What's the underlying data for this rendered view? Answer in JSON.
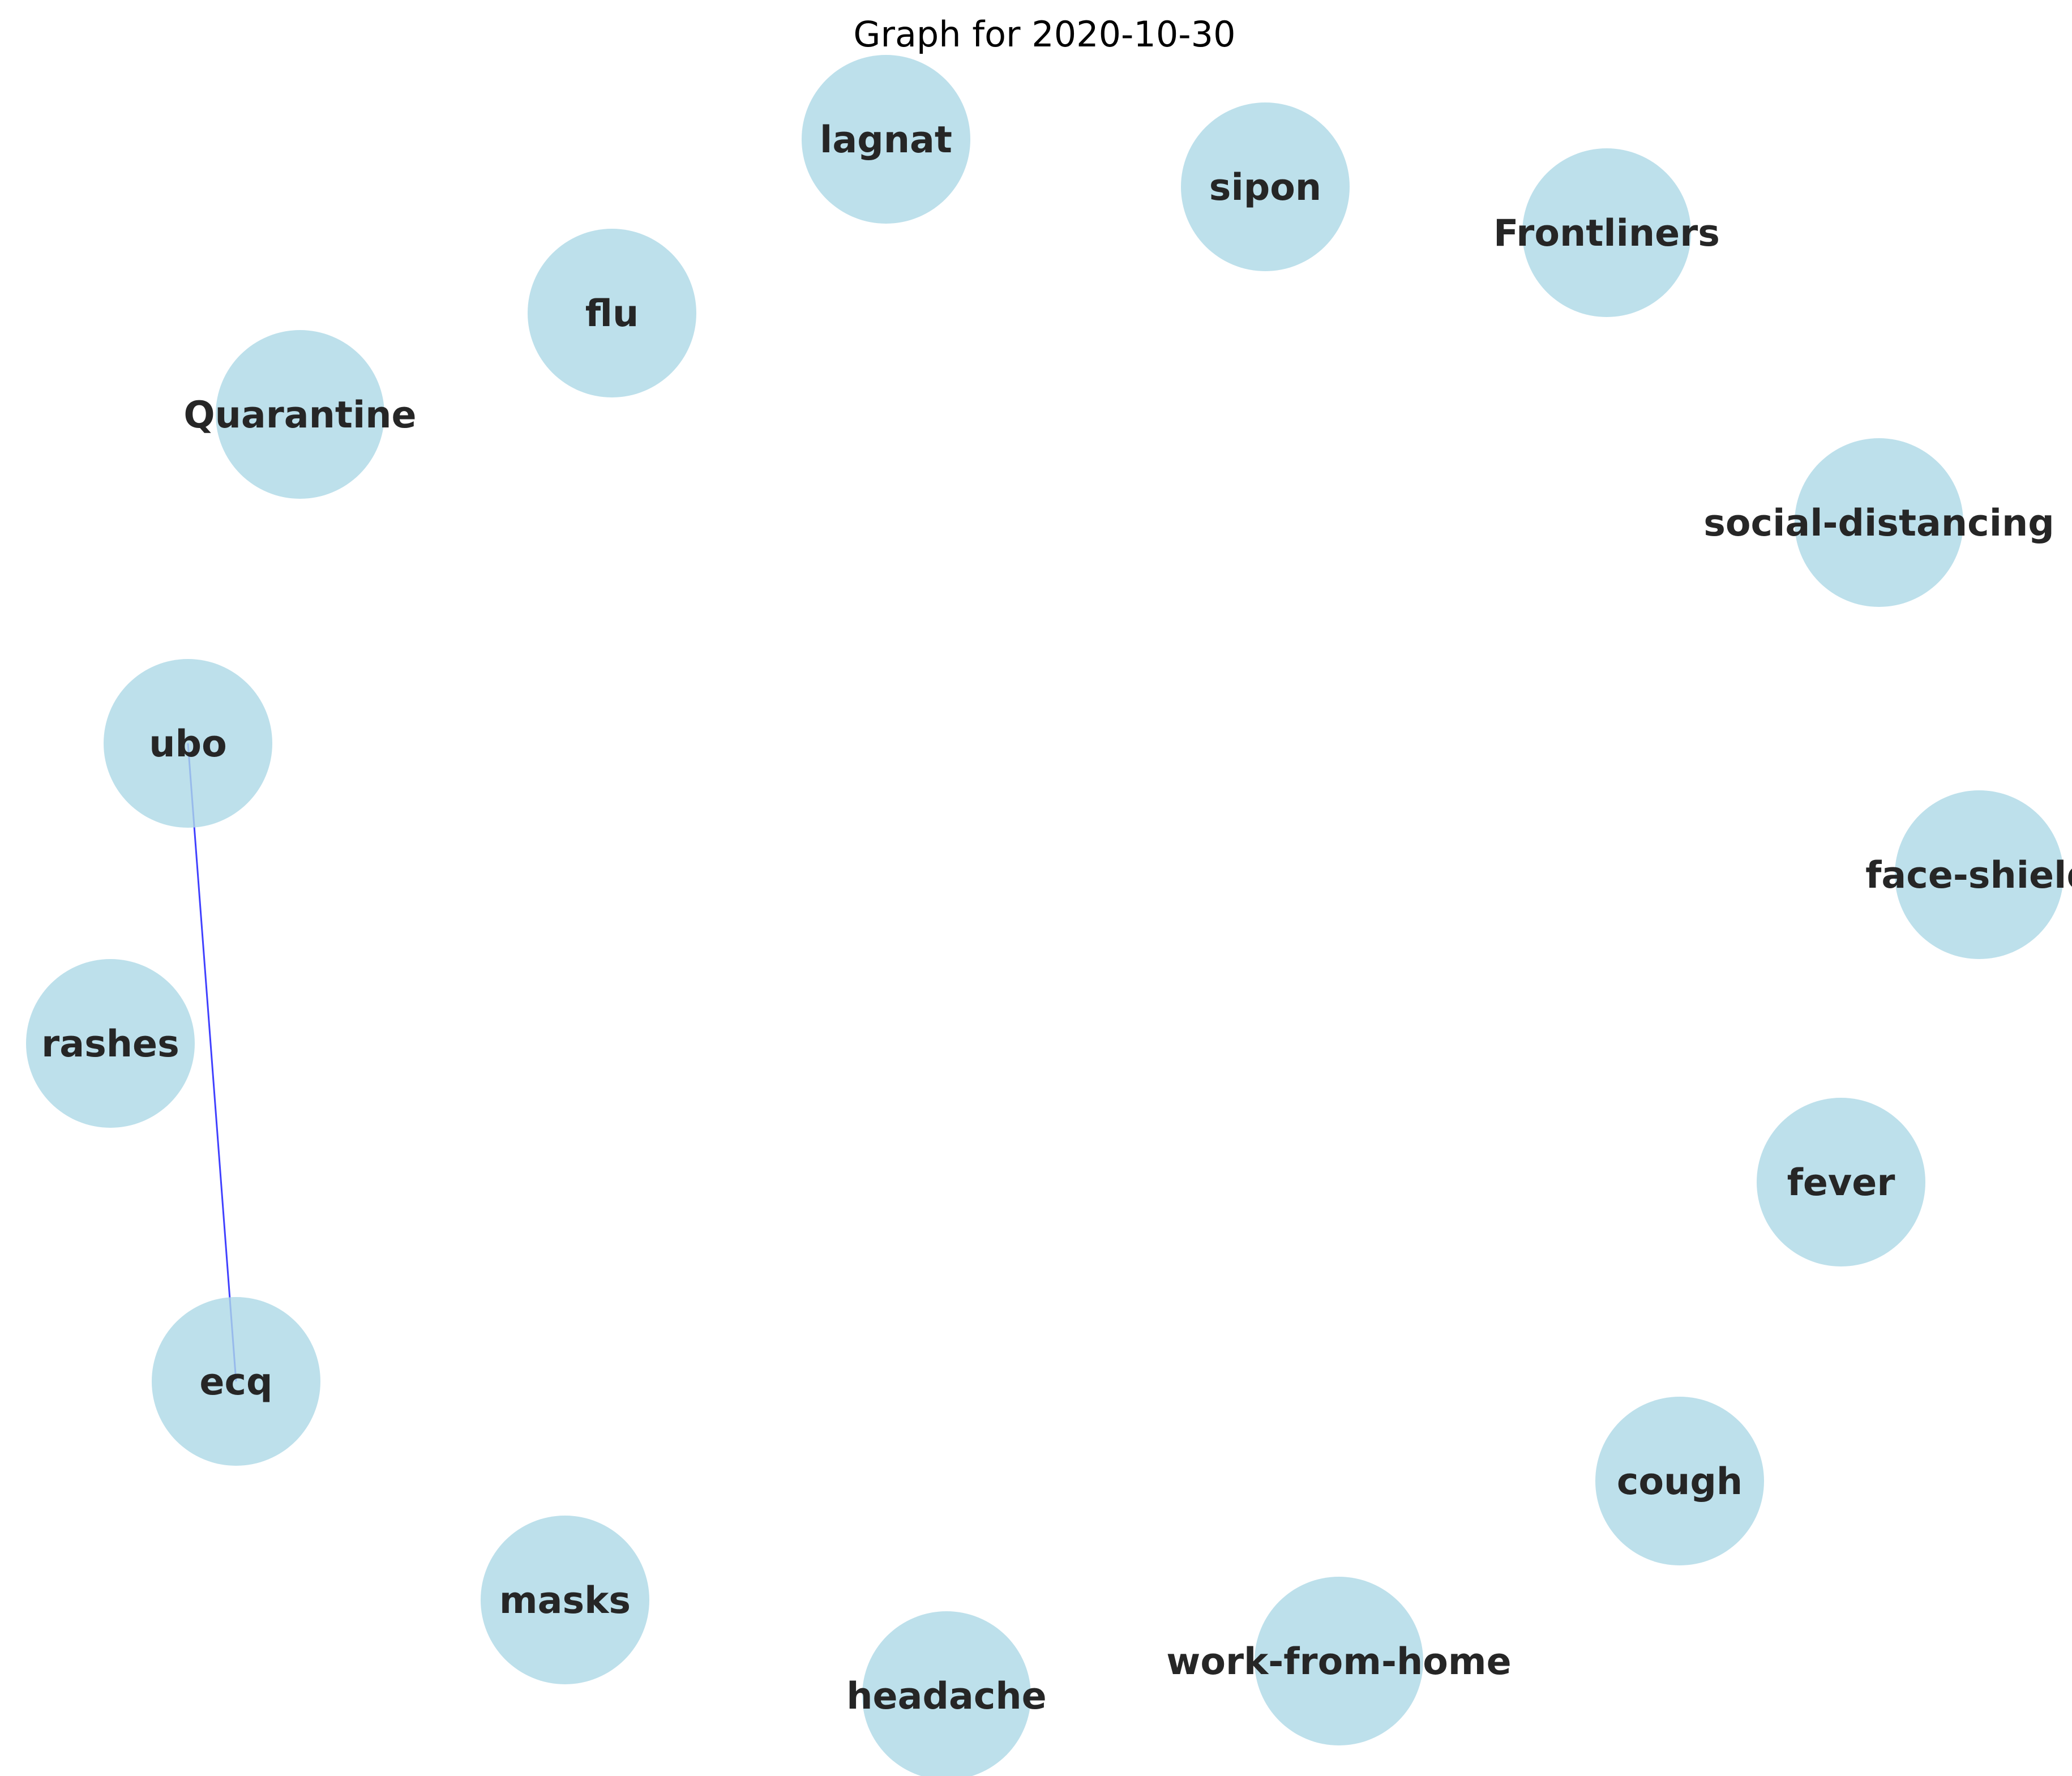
{
  "title": "Graph for 2020-10-30",
  "node_style": {
    "fill": "#add8e6",
    "label_color": "#262626"
  },
  "edge_style": {
    "color": "#0000ff"
  },
  "nodes": [
    {
      "id": "lagnat",
      "label": "lagnat"
    },
    {
      "id": "sipon",
      "label": "sipon"
    },
    {
      "id": "Frontliners",
      "label": "Frontliners"
    },
    {
      "id": "flu",
      "label": "flu"
    },
    {
      "id": "Quarantine",
      "label": "Quarantine"
    },
    {
      "id": "social-distancing",
      "label": "social-distancing"
    },
    {
      "id": "ubo",
      "label": "ubo"
    },
    {
      "id": "face-shield",
      "label": "face-shield"
    },
    {
      "id": "rashes",
      "label": "rashes"
    },
    {
      "id": "fever",
      "label": "fever"
    },
    {
      "id": "ecq",
      "label": "ecq"
    },
    {
      "id": "cough",
      "label": "cough"
    },
    {
      "id": "masks",
      "label": "masks"
    },
    {
      "id": "work-from-home",
      "label": "work-from-home"
    },
    {
      "id": "headache",
      "label": "headache"
    }
  ],
  "edges": [
    {
      "source": "ubo",
      "target": "ecq"
    }
  ]
}
